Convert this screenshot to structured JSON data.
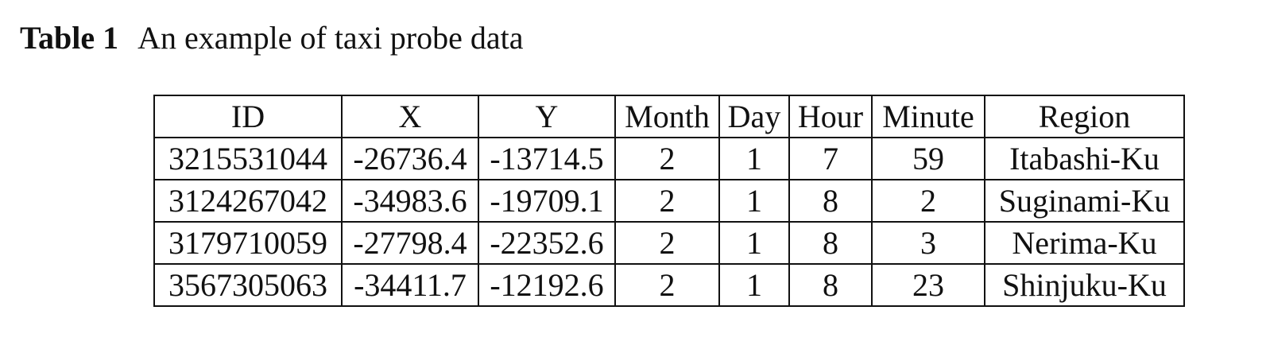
{
  "caption": {
    "label": "Table 1",
    "text": "An example of taxi probe data"
  },
  "table": {
    "headers": [
      "ID",
      "X",
      "Y",
      "Month",
      "Day",
      "Hour",
      "Minute",
      "Region"
    ],
    "rows": [
      [
        "3215531044",
        "-26736.4",
        "-13714.5",
        "2",
        "1",
        "7",
        "59",
        "Itabashi-Ku"
      ],
      [
        "3124267042",
        "-34983.6",
        "-19709.1",
        "2",
        "1",
        "8",
        "2",
        "Suginami-Ku"
      ],
      [
        "3179710059",
        "-27798.4",
        "-22352.6",
        "2",
        "1",
        "8",
        "3",
        "Nerima-Ku"
      ],
      [
        "3567305063",
        "-34411.7",
        "-12192.6",
        "2",
        "1",
        "8",
        "23",
        "Shinjuku-Ku"
      ]
    ]
  }
}
